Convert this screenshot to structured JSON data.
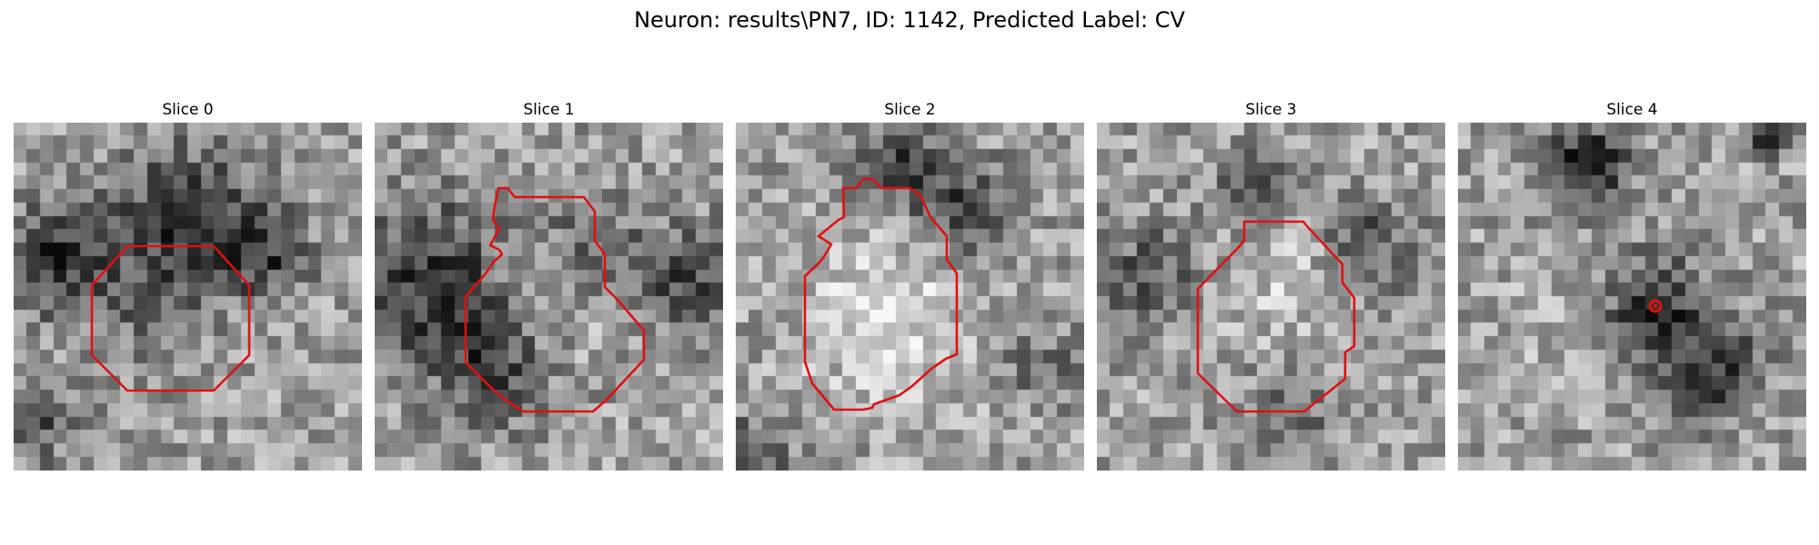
{
  "figure": {
    "title": "Neuron: results\\PN7, ID: 1142, Predicted Label: CV"
  },
  "overlay_color": "#e01010",
  "panels": [
    {
      "title": "Slice 0",
      "outline": "polygon"
    },
    {
      "title": "Slice 1",
      "outline": "polygon"
    },
    {
      "title": "Slice 2",
      "outline": "polygon"
    },
    {
      "title": "Slice 3",
      "outline": "polygon"
    },
    {
      "title": "Slice 4",
      "outline": "point"
    }
  ]
}
